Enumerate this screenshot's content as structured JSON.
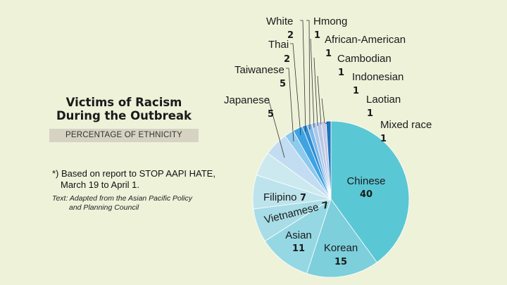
{
  "title_line1": "Victims of Racism",
  "title_line2": "During the Outbreak",
  "subtitle": "PERCENTAGE OF ETHNICITY",
  "footnote_line1": "*) Based on report to STOP AAPI HATE,",
  "footnote_line2": "March 19 to April 1.",
  "source_line1": "Text: Adapted from the Asian Pacific Policy",
  "source_line2": "and Planning Council",
  "chart_data": {
    "type": "pie",
    "title": "Victims of Racism During the Outbreak",
    "subtitle": "PERCENTAGE OF ETHNICITY",
    "slices": [
      {
        "label": "Chinese",
        "value": 40,
        "color": "#5ac7d4"
      },
      {
        "label": "Korean",
        "value": 15,
        "color": "#7ccfdb"
      },
      {
        "label": "Asian",
        "value": 11,
        "color": "#95d8e3"
      },
      {
        "label": "Vietnamese",
        "value": 7,
        "color": "#a8dde7"
      },
      {
        "label": "Filipino",
        "value": 7,
        "color": "#bde4ec"
      },
      {
        "label": "Japanese",
        "value": 5,
        "color": "#cde9f0"
      },
      {
        "label": "Taiwanese",
        "value": 5,
        "color": "#c2ddf2"
      },
      {
        "label": "Thai",
        "value": 2,
        "color": "#8ec9ee"
      },
      {
        "label": "White",
        "value": 2,
        "color": "#3fa3e2"
      },
      {
        "label": "Hmong",
        "value": 1,
        "color": "#2d8fd6"
      },
      {
        "label": "African-American",
        "value": 1,
        "color": "#7db8e8"
      },
      {
        "label": "Cambodian",
        "value": 1,
        "color": "#a9c9ea"
      },
      {
        "label": "Indonesian",
        "value": 1,
        "color": "#b8c6e6"
      },
      {
        "label": "Laotian",
        "value": 1,
        "color": "#c4c9e4"
      },
      {
        "label": "Mixed race",
        "value": 1,
        "color": "#1e73bf"
      }
    ]
  }
}
